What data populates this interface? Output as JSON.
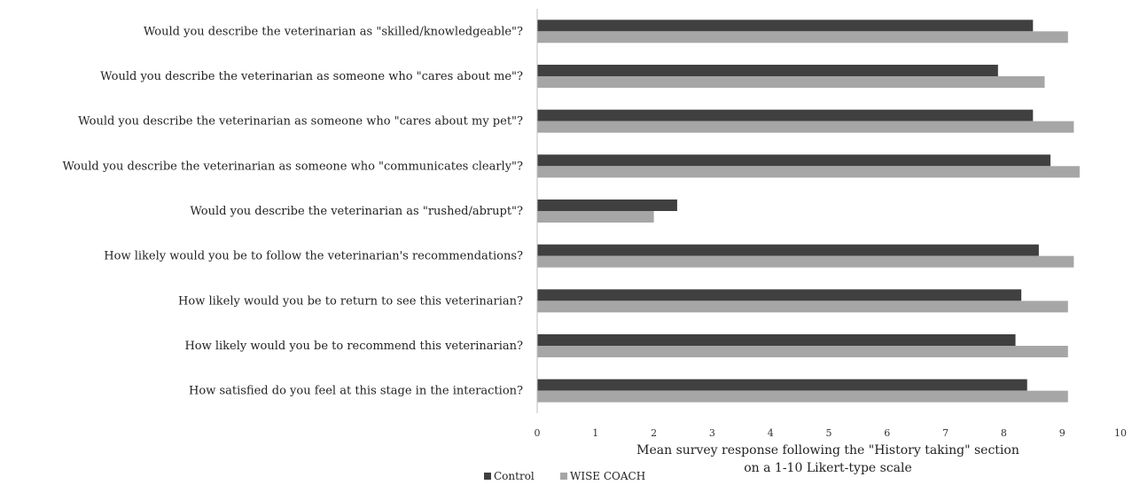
{
  "chart_data": {
    "type": "bar",
    "orientation": "horizontal",
    "categories": [
      "Would you describe the veterinarian as \"skilled/knowledgeable\"?",
      "Would you describe the veterinarian as someone who \"cares about me\"?",
      "Would you describe the veterinarian as someone who \"cares about my pet\"?",
      "Would you describe the veterinarian as someone who \"communicates clearly\"?",
      "Would you describe the veterinarian as \"rushed/abrupt\"?",
      "How likely would you be to follow the veterinarian's recommendations?",
      "How likely would you be to return to see this veterinarian?",
      "How likely would you be to recommend this veterinarian?",
      "How satisfied do you feel at this stage in the interaction?"
    ],
    "series": [
      {
        "name": "Control",
        "color": "#404040",
        "values": [
          8.5,
          7.9,
          8.5,
          8.8,
          2.4,
          8.6,
          8.3,
          8.2,
          8.4
        ]
      },
      {
        "name": "WISE COACH",
        "color": "#a6a6a6",
        "values": [
          9.1,
          8.7,
          9.2,
          9.3,
          2.0,
          9.2,
          9.1,
          9.1,
          9.1
        ]
      }
    ],
    "xlim": [
      0,
      10
    ],
    "xticks": [
      "0",
      "1",
      "2",
      "3",
      "4",
      "5",
      "6",
      "7",
      "8",
      "9",
      "10"
    ],
    "xlabel_lines": [
      "Mean survey response following the \"History taking\" section",
      "on a 1-10 Likert-type scale"
    ],
    "ylabel": "",
    "title": "",
    "legend": {
      "position": "bottom-left",
      "entries": [
        "Control",
        "WISE COACH"
      ]
    },
    "grid": false
  }
}
